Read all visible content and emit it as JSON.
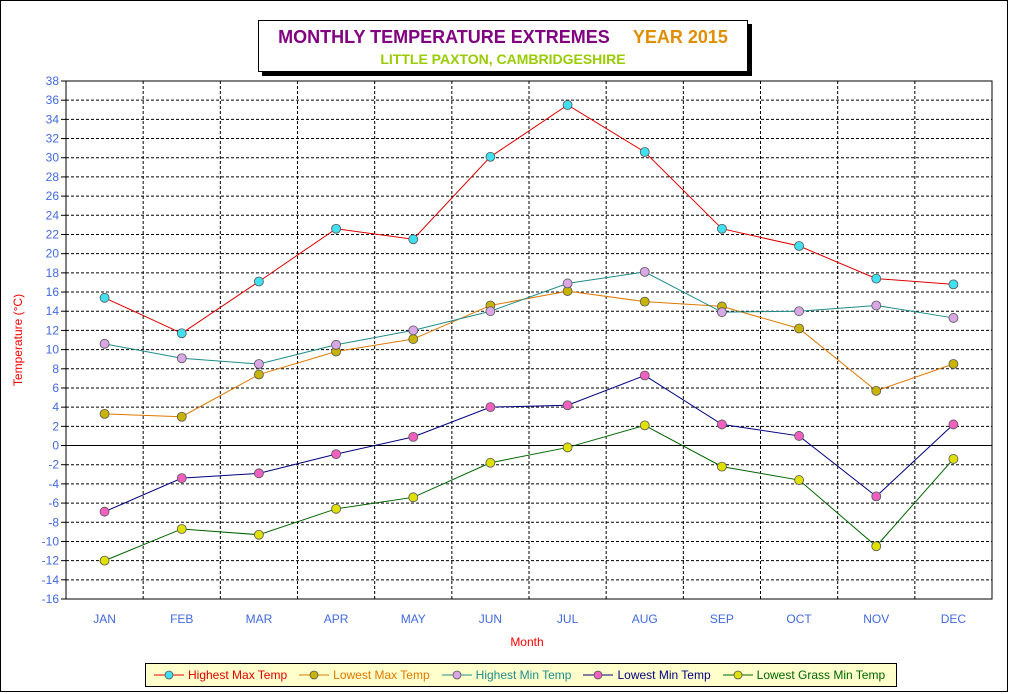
{
  "title": {
    "main": "MONTHLY TEMPERATURE EXTREMES",
    "year": "YEAR  2015",
    "subtitle": "LITTLE PAXTON, CAMBRIDGESHIRE"
  },
  "colors": {
    "title_main": "#800080",
    "title_year": "#e08e00",
    "subtitle": "#99cc00",
    "tick_text": "#4169e1",
    "axis_label": "#ff0000",
    "legend_bg": "#ffffcc"
  },
  "chart_data": {
    "type": "line",
    "categories": [
      "JAN",
      "FEB",
      "MAR",
      "APR",
      "MAY",
      "JUN",
      "JUL",
      "AUG",
      "SEP",
      "OCT",
      "NOV",
      "DEC"
    ],
    "xlabel": "Month",
    "ylabel": "Temperature (°C)",
    "ylim": [
      -16,
      38
    ],
    "yticks": [
      38,
      36,
      34,
      32,
      30,
      28,
      26,
      24,
      22,
      20,
      18,
      16,
      14,
      12,
      10,
      8,
      6,
      4,
      2,
      0,
      -2,
      -4,
      -6,
      -8,
      -10,
      -12,
      -14,
      -16
    ],
    "grid": true,
    "legend_position": "bottom",
    "series": [
      {
        "name": "Highest Max Temp",
        "line_color": "#e00000",
        "marker_color": "#40e0f0",
        "values": [
          15.4,
          11.7,
          17.1,
          22.6,
          21.5,
          30.1,
          35.5,
          30.6,
          22.6,
          20.8,
          17.4,
          16.8
        ]
      },
      {
        "name": "Lowest Max Temp",
        "line_color": "#e07800",
        "marker_color": "#c8b400",
        "values": [
          3.3,
          3.0,
          7.4,
          9.8,
          11.1,
          14.6,
          16.1,
          15.0,
          14.5,
          12.2,
          5.7,
          8.5
        ]
      },
      {
        "name": "Highest Min Temp",
        "line_color": "#1e8c8c",
        "marker_color": "#d9a6e6",
        "values": [
          10.6,
          9.1,
          8.5,
          10.5,
          12.0,
          14.0,
          16.9,
          18.1,
          13.9,
          14.0,
          14.6,
          13.3
        ]
      },
      {
        "name": "Lowest Min Temp",
        "line_color": "#000080",
        "marker_color": "#f060c0",
        "values": [
          -6.9,
          -3.4,
          -2.9,
          -0.9,
          0.9,
          4.0,
          4.2,
          7.3,
          2.2,
          1.0,
          -5.3,
          2.2
        ]
      },
      {
        "name": "Lowest Grass Min Temp",
        "line_color": "#006400",
        "marker_color": "#e0e000",
        "values": [
          -12.0,
          -8.7,
          -9.3,
          -6.6,
          -5.4,
          -1.8,
          -0.2,
          2.1,
          -2.2,
          -3.6,
          -10.5,
          -1.4
        ]
      }
    ]
  }
}
